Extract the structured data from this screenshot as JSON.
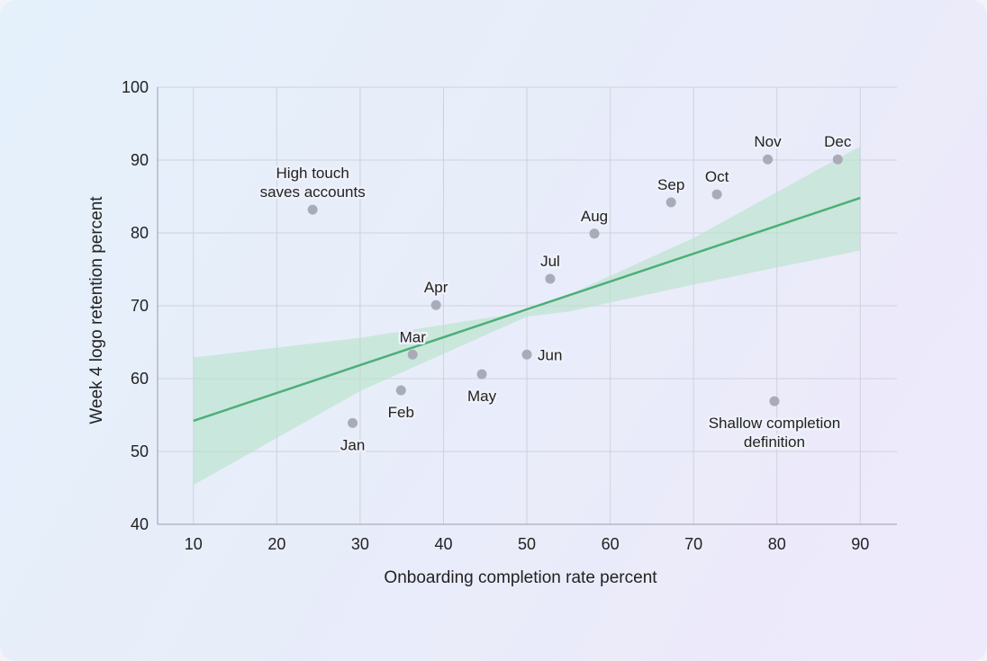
{
  "chart_data": {
    "type": "scatter",
    "title": "",
    "xlabel": "Onboarding completion rate percent",
    "ylabel": "Week 4 logo retention percent",
    "xlim": [
      5.7,
      94.4
    ],
    "ylim": [
      40,
      100
    ],
    "xticks": [
      10,
      20,
      30,
      40,
      50,
      60,
      70,
      80,
      90
    ],
    "yticks": [
      40,
      50,
      60,
      70,
      80,
      90,
      100
    ],
    "grid": true,
    "colors": {
      "point": "#a9acb8",
      "fit_line": "#4caf78",
      "band": "#b5e3c8",
      "grid": "#cfd2dc"
    },
    "points": [
      {
        "label": "Jan",
        "x": 29.1,
        "y": 53.9,
        "label_pos": "below"
      },
      {
        "label": "Feb",
        "x": 34.9,
        "y": 58.4,
        "label_pos": "below"
      },
      {
        "label": "Mar",
        "x": 36.3,
        "y": 63.3,
        "label_pos": "above"
      },
      {
        "label": "Apr",
        "x": 39.1,
        "y": 70.1,
        "label_pos": "above"
      },
      {
        "label": "May",
        "x": 44.6,
        "y": 60.6,
        "label_pos": "below"
      },
      {
        "label": "Jun",
        "x": 50.0,
        "y": 63.3,
        "label_pos": "right"
      },
      {
        "label": "Jul",
        "x": 52.8,
        "y": 73.7,
        "label_pos": "above"
      },
      {
        "label": "Aug",
        "x": 58.1,
        "y": 79.9,
        "label_pos": "above"
      },
      {
        "label": "Sep",
        "x": 67.3,
        "y": 84.2,
        "label_pos": "above"
      },
      {
        "label": "Oct",
        "x": 72.8,
        "y": 85.3,
        "label_pos": "above"
      },
      {
        "label": "Nov",
        "x": 78.9,
        "y": 90.1,
        "label_pos": "above"
      },
      {
        "label": "Dec",
        "x": 87.3,
        "y": 90.1,
        "label_pos": "above"
      },
      {
        "label": "High touch saves accounts",
        "x": 24.3,
        "y": 83.2,
        "label_pos": "above"
      },
      {
        "label": "Shallow completion definition",
        "x": 79.7,
        "y": 56.9,
        "label_pos": "below"
      }
    ],
    "fit_line": {
      "x": [
        10,
        90
      ],
      "y": [
        54.2,
        84.8
      ]
    },
    "confidence_band": {
      "x": [
        10,
        30,
        50,
        55,
        70,
        90
      ],
      "upper": [
        62.9,
        65.6,
        69.2,
        71.5,
        79.3,
        91.9
      ],
      "lower": [
        45.4,
        58.3,
        68.5,
        69.2,
        72.9,
        77.6
      ]
    }
  }
}
